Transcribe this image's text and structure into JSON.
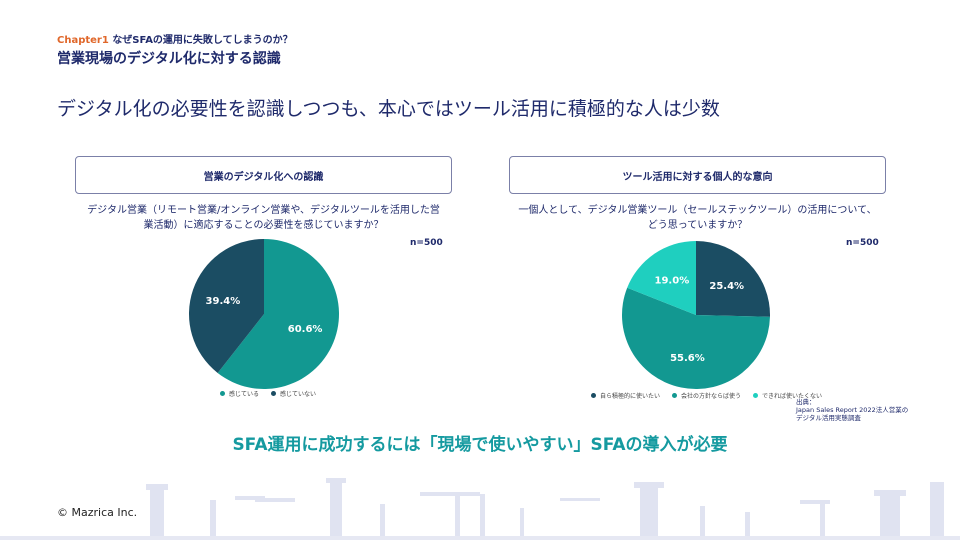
{
  "header": {
    "chapter_num": "Chapter1",
    "chapter_title": "なぜSFAの運用に失敗してしまうのか？",
    "subtitle": "営業現場のデジタル化に対する認識",
    "headline": "デジタル化の必要性を認識しつつも、本心ではツール活用に積極的な人は少数"
  },
  "left_panel": {
    "box_title": "営業のデジタル化への認識",
    "question_line1": "デジタル営業（リモート営業/オンライン営業や、デジタルツールを活用した営",
    "question_line2": "業活動）に適応することの必要性を感じていますか？",
    "n_label": "n=500"
  },
  "right_panel": {
    "box_title": "ツール活用に対する個人的な意向",
    "question_line1": "一個人として、デジタル営業ツール（セールステックツール）の活用について、",
    "question_line2": "どう思っていますか？",
    "n_label": "n=500",
    "source_label": "出典：",
    "source_line1": "Japan Sales Report 2022法人営業の",
    "source_line2": "デジタル活用実態調査"
  },
  "chart_data": [
    {
      "type": "pie",
      "title": "営業のデジタル化への認識",
      "categories": [
        "感じている",
        "感じていない"
      ],
      "values": [
        60.6,
        39.4
      ],
      "labels": [
        "60.6%",
        "39.4%"
      ],
      "colors": [
        "#129891",
        "#1b4d63"
      ],
      "legend": "bottom"
    },
    {
      "type": "pie",
      "title": "ツール活用に対する個人的な意向",
      "categories": [
        "自ら積極的に使いたい",
        "会社の方針ならば使う",
        "できれば使いたくない"
      ],
      "values": [
        25.4,
        55.6,
        19.0
      ],
      "labels": [
        "25.4%",
        "55.6%",
        "19.0%"
      ],
      "colors": [
        "#1b4d63",
        "#129891",
        "#1fcfbf"
      ],
      "legend": "bottom"
    }
  ],
  "conclusion": "SFA運用に成功するには「現場で使いやすい」SFAの導入が必要",
  "footer": {
    "copyright": "© Mazrica Inc."
  },
  "colors": {
    "navy": "#1f2a6b",
    "accent_orange": "#e0672a",
    "teal_text": "#159aa0"
  }
}
